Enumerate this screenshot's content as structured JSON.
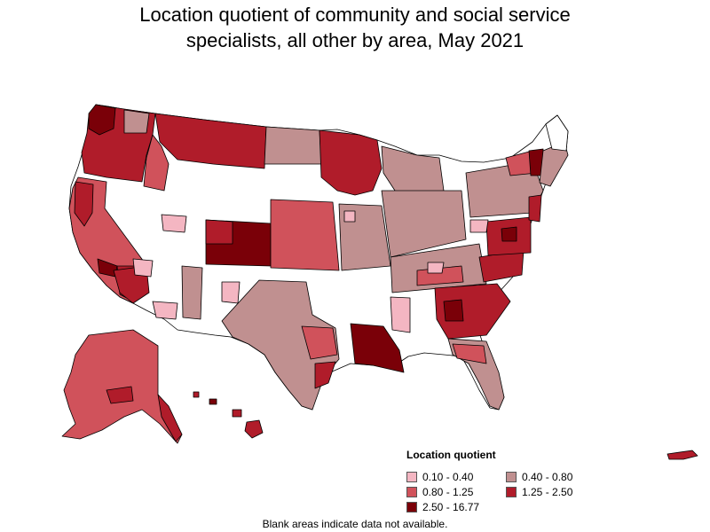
{
  "title": {
    "line1": "Location quotient of community and social service",
    "line2": "specialists, all other by area, May 2021"
  },
  "legend": {
    "title": "Location quotient",
    "items": [
      {
        "label": "0.10 - 0.40",
        "color": "#f4b6c2"
      },
      {
        "label": "0.40 - 0.80",
        "color": "#c09090"
      },
      {
        "label": "0.80 - 1.25",
        "color": "#d0525b"
      },
      {
        "label": "1.25 - 2.50",
        "color": "#b01c2a"
      },
      {
        "label": "2.50 - 16.77",
        "color": "#7a0008"
      }
    ]
  },
  "footnote": "Blank areas indicate data not available."
}
